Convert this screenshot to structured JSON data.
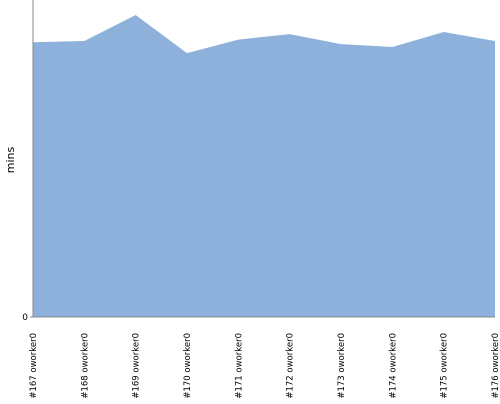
{
  "chart_data": {
    "type": "area",
    "y_label": "mins",
    "categories": [
      "#167 oworker0",
      "#168 oworker0",
      "#169 oworker0",
      "#170 oworker0",
      "#171 oworker0",
      "#172 oworker0",
      "#173 oworker0",
      "#174 oworker0",
      "#175 oworker0",
      "#176 oworker0"
    ],
    "values": [
      10.4,
      10.45,
      11.43,
      9.99,
      10.5,
      10.71,
      10.33,
      10.22,
      10.79,
      10.45
    ],
    "color": "#8eb1dc",
    "ylim": [
      0,
      12
    ],
    "yticks": [
      0
    ]
  }
}
